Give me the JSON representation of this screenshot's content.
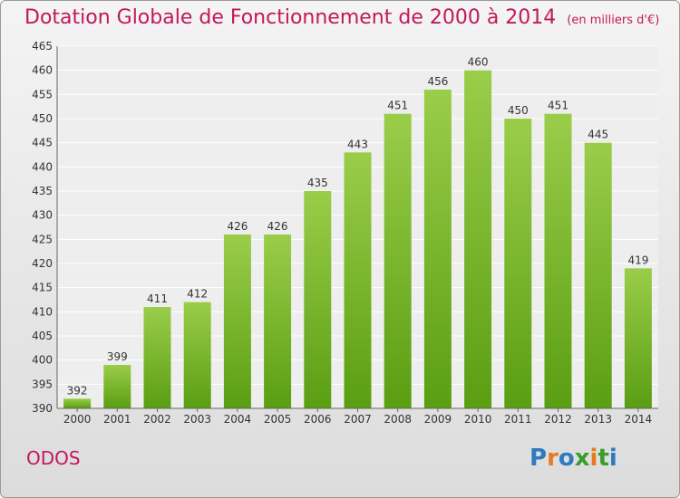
{
  "header": {
    "title": "Dotation Globale de Fonctionnement de 2000 à 2014",
    "unit_note": "(en milliers d'€)"
  },
  "footer": {
    "commune": "ODOS",
    "logo_letters": [
      "P",
      "r",
      "o",
      "x",
      "i",
      "t",
      "i"
    ],
    "logo_colors": [
      "#2e7bbf",
      "#e8791e",
      "#2e7bbf",
      "#3a9b2e",
      "#e8791e",
      "#3a9b2e",
      "#2e7bbf"
    ]
  },
  "chart_data": {
    "type": "bar",
    "title": "Dotation Globale de Fonctionnement de 2000 à 2014",
    "subtitle": "(en milliers d'€)",
    "categories": [
      "2000",
      "2001",
      "2002",
      "2003",
      "2004",
      "2005",
      "2006",
      "2007",
      "2008",
      "2009",
      "2010",
      "2011",
      "2012",
      "2013",
      "2014"
    ],
    "values": [
      392,
      399,
      411,
      412,
      426,
      426,
      435,
      443,
      451,
      456,
      460,
      450,
      451,
      445,
      419
    ],
    "ylim": [
      390,
      465
    ],
    "yticks": [
      390,
      395,
      400,
      405,
      410,
      415,
      420,
      425,
      430,
      435,
      440,
      445,
      450,
      455,
      460,
      465
    ],
    "grid": true,
    "bar_color_top": "#9acd4a",
    "bar_color_bottom": "#5a9e12"
  }
}
